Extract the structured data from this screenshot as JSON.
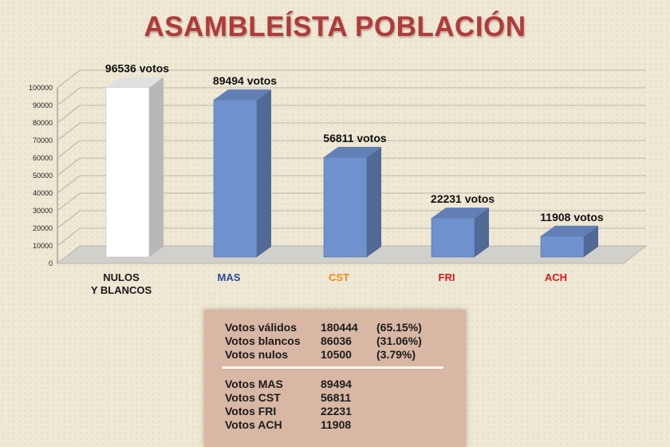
{
  "chart_data": {
    "type": "bar",
    "title": "ASAMBLEÍSTA POBLACIÓN",
    "categories": [
      "NULOS Y BLANCOS",
      "MAS",
      "CST",
      "FRI",
      "ACH"
    ],
    "values": [
      96536,
      89494,
      56811,
      22231,
      11908
    ],
    "data_labels": [
      "96536 votos",
      "89494 votos",
      "56811 votos",
      "22231 votos",
      "11908 votos"
    ],
    "category_colors": [
      "#1a1a1a",
      "#2a4a9a",
      "#f08a18",
      "#d41818",
      "#e01818"
    ],
    "bar_colors": [
      "#ffffff",
      "#6f92cf",
      "#6f92cf",
      "#6f92cf",
      "#6f92cf"
    ],
    "ylim": [
      0,
      100000
    ],
    "yticks": [
      0,
      10000,
      20000,
      30000,
      40000,
      50000,
      60000,
      70000,
      80000,
      90000,
      100000
    ],
    "grid": true,
    "xlabel": "",
    "ylabel": ""
  },
  "summary": {
    "rows": [
      {
        "label": "Votos válidos",
        "value": "180444",
        "pct": "(65.15%)"
      },
      {
        "label": "Votos blancos",
        "value": "86036",
        "pct": "(31.06%)"
      },
      {
        "label": "Votos nulos",
        "value": "10500",
        "pct": "(3.79%)"
      }
    ],
    "party_rows": [
      {
        "label": "Votos  MAS",
        "value": "89494"
      },
      {
        "label": "Votos  CST",
        "value": "56811"
      },
      {
        "label": "Votos  FRI",
        "value": "22231"
      },
      {
        "label": "Votos  ACH",
        "value": "11908"
      }
    ]
  }
}
